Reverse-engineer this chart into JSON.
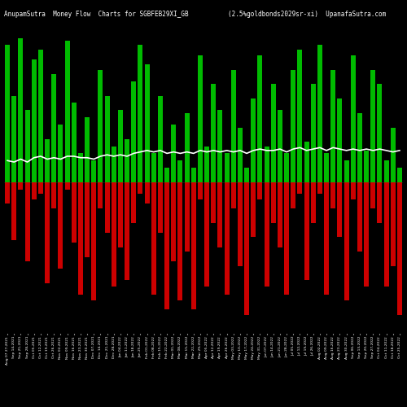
{
  "title_left": "AnupamSutra  Money Flow  Charts for SGBFEB29XI_GB",
  "title_right": "(2.5%goldbonds2029sr-xi)  UpanafaSutra.com",
  "background_color": "#000000",
  "bar_color_positive": "#00bb00",
  "bar_color_negative": "#cc0000",
  "line_color": "#ffffff",
  "num_bars": 60,
  "upper_bars": [
    0.95,
    0.6,
    1.0,
    0.5,
    0.85,
    0.92,
    0.3,
    0.75,
    0.4,
    0.98,
    0.55,
    0.2,
    0.45,
    0.15,
    0.78,
    0.6,
    0.25,
    0.5,
    0.3,
    0.7,
    0.95,
    0.82,
    0.2,
    0.6,
    0.1,
    0.4,
    0.15,
    0.48,
    0.1,
    0.88,
    0.25,
    0.68,
    0.5,
    0.2,
    0.78,
    0.38,
    0.1,
    0.58,
    0.88,
    0.25,
    0.68,
    0.5,
    0.2,
    0.78,
    0.92,
    0.28,
    0.68,
    0.95,
    0.2,
    0.78,
    0.58,
    0.15,
    0.88,
    0.48,
    0.22,
    0.78,
    0.68,
    0.15,
    0.38,
    0.1
  ],
  "lower_bars": [
    -0.15,
    -0.4,
    -0.05,
    -0.55,
    -0.12,
    -0.08,
    -0.7,
    -0.18,
    -0.6,
    -0.05,
    -0.42,
    -0.78,
    -0.52,
    -0.82,
    -0.18,
    -0.35,
    -0.72,
    -0.45,
    -0.68,
    -0.28,
    -0.08,
    -0.15,
    -0.78,
    -0.35,
    -0.88,
    -0.55,
    -0.82,
    -0.48,
    -0.88,
    -0.12,
    -0.72,
    -0.28,
    -0.45,
    -0.78,
    -0.18,
    -0.58,
    -0.92,
    -0.38,
    -0.12,
    -0.72,
    -0.28,
    -0.45,
    -0.78,
    -0.18,
    -0.08,
    -0.68,
    -0.28,
    -0.08,
    -0.78,
    -0.18,
    -0.38,
    -0.82,
    -0.12,
    -0.48,
    -0.72,
    -0.18,
    -0.28,
    -0.72,
    -0.58,
    -0.92
  ],
  "line_y": [
    0.15,
    0.14,
    0.16,
    0.14,
    0.17,
    0.18,
    0.16,
    0.17,
    0.16,
    0.18,
    0.18,
    0.17,
    0.17,
    0.16,
    0.18,
    0.19,
    0.18,
    0.19,
    0.18,
    0.2,
    0.21,
    0.22,
    0.21,
    0.22,
    0.2,
    0.21,
    0.2,
    0.21,
    0.2,
    0.22,
    0.21,
    0.22,
    0.21,
    0.22,
    0.21,
    0.22,
    0.2,
    0.22,
    0.23,
    0.22,
    0.22,
    0.23,
    0.21,
    0.23,
    0.24,
    0.22,
    0.23,
    0.24,
    0.22,
    0.24,
    0.23,
    0.22,
    0.23,
    0.22,
    0.23,
    0.22,
    0.23,
    0.22,
    0.21,
    0.22
  ],
  "x_labels": [
    "Aug 07 27,2021",
    "Sep 14,2021",
    "Sep 21,2021",
    "Sep 28,2021",
    "Oct 05,2021",
    "Oct 12,2021",
    "Oct 19,2021",
    "Oct 26,2021",
    "Nov 02,2021",
    "Nov 09,2021",
    "Nov 16,2021",
    "Nov 23,2021",
    "Nov 30,2021",
    "Dec 07,2021",
    "Dec 14,2021",
    "Dec 21,2021",
    "Dec 28,2021",
    "Jan 04,2022",
    "Jan 11,2022",
    "Jan 18,2022",
    "Jan 25,2022",
    "Feb 01,2022",
    "Feb 08,2022",
    "Feb 15,2022",
    "Feb 22,2022",
    "Mar 01,2022",
    "Mar 08,2022",
    "Mar 15,2022",
    "Mar 22,2022",
    "Mar 29,2022",
    "Apr 05,2022",
    "Apr 12,2022",
    "Apr 19,2022",
    "Apr 26,2022",
    "May 03,2022",
    "May 10,2022",
    "May 17,2022",
    "May 24,2022",
    "May 31,2022",
    "Jun 07,2022",
    "Jun 14,2022",
    "Jun 21,2022",
    "Jun 28,2022",
    "Jul 05,2022",
    "Jul 12,2022",
    "Jul 19,2022",
    "Jul 26,2022",
    "Aug 02,2022",
    "Aug 09,2022",
    "Aug 16,2022",
    "Aug 23,2022",
    "Aug 30,2022",
    "Sep 06,2022",
    "Sep 13,2022",
    "Sep 20,2022",
    "Sep 27,2022",
    "Oct 04,2022",
    "Oct 11,2022",
    "Oct 18,2022",
    "Oct 25,2022"
  ],
  "figsize": [
    5.0,
    5.0
  ],
  "dpi": 100,
  "ylim": [
    -1.05,
    1.15
  ],
  "bar_width": 0.72,
  "line_width": 1.2,
  "title_fontsize": 5.5,
  "xlabel_fontsize": 3.2
}
